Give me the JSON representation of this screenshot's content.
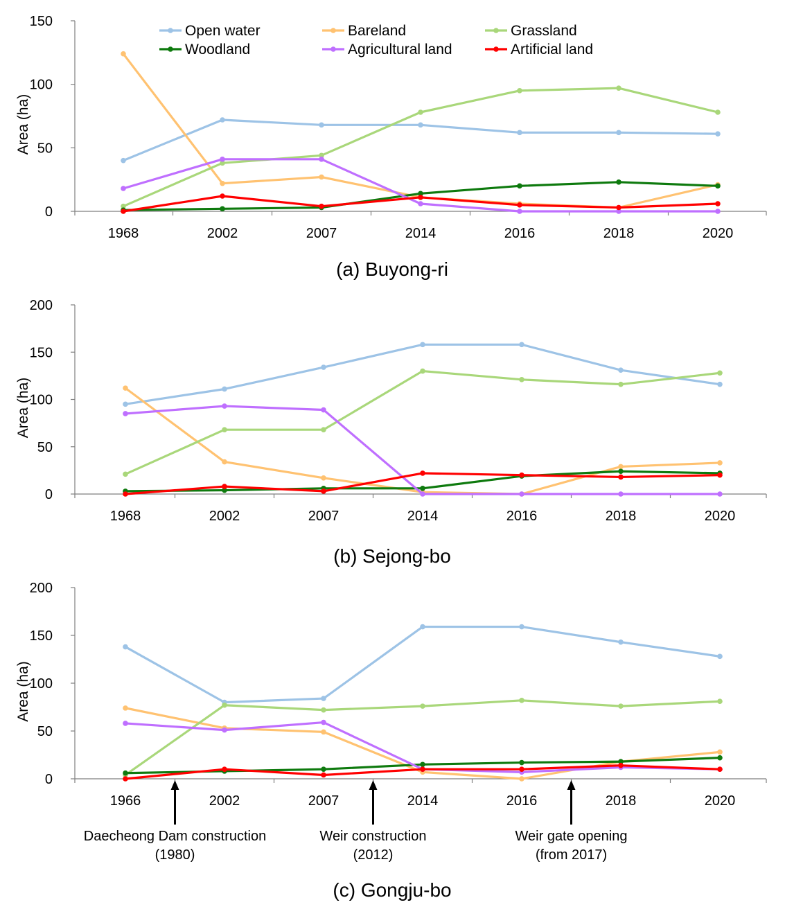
{
  "legend": {
    "items": [
      {
        "name": "Open water",
        "color": "#9dc3e6"
      },
      {
        "name": "Bareland",
        "color": "#ffc271"
      },
      {
        "name": "Grassland",
        "color": "#a9d77a"
      },
      {
        "name": "Woodland",
        "color": "#0e7a0e"
      },
      {
        "name": "Agricultural land",
        "color": "#bf6fff"
      },
      {
        "name": "Artificial land",
        "color": "#ff0000"
      }
    ]
  },
  "chart_data": [
    {
      "type": "line",
      "caption": "(a)  Buyong-ri",
      "categories": [
        "1968",
        "2002",
        "2007",
        "2014",
        "2016",
        "2018",
        "2020"
      ],
      "ylabel": "Area (ha)",
      "ylim": [
        0,
        150
      ],
      "yticks": [
        0,
        50,
        100,
        150
      ],
      "series": [
        {
          "name": "Open water",
          "color": "#9dc3e6",
          "values": [
            40,
            72,
            68,
            68,
            62,
            62,
            61
          ]
        },
        {
          "name": "Bareland",
          "color": "#ffc271",
          "values": [
            124,
            22,
            27,
            11,
            6,
            3,
            21
          ]
        },
        {
          "name": "Grassland",
          "color": "#a9d77a",
          "values": [
            4,
            38,
            44,
            78,
            95,
            97,
            78
          ]
        },
        {
          "name": "Woodland",
          "color": "#0e7a0e",
          "values": [
            1,
            2,
            3,
            14,
            20,
            23,
            20
          ]
        },
        {
          "name": "Agricultural land",
          "color": "#bf6fff",
          "values": [
            18,
            41,
            41,
            6,
            0,
            0,
            0
          ]
        },
        {
          "name": "Artificial land",
          "color": "#ff0000",
          "values": [
            0,
            12,
            4,
            11,
            5,
            3,
            6
          ]
        }
      ]
    },
    {
      "type": "line",
      "caption": "(b)  Sejong-bo",
      "categories": [
        "1968",
        "2002",
        "2007",
        "2014",
        "2016",
        "2018",
        "2020"
      ],
      "ylabel": "Area (ha)",
      "ylim": [
        0,
        200
      ],
      "yticks": [
        0,
        50,
        100,
        150,
        200
      ],
      "series": [
        {
          "name": "Open water",
          "color": "#9dc3e6",
          "values": [
            95,
            111,
            134,
            158,
            158,
            131,
            116
          ]
        },
        {
          "name": "Bareland",
          "color": "#ffc271",
          "values": [
            112,
            34,
            17,
            2,
            0,
            29,
            33
          ]
        },
        {
          "name": "Grassland",
          "color": "#a9d77a",
          "values": [
            21,
            68,
            68,
            130,
            121,
            116,
            128
          ]
        },
        {
          "name": "Woodland",
          "color": "#0e7a0e",
          "values": [
            3,
            4,
            6,
            6,
            19,
            24,
            22
          ]
        },
        {
          "name": "Agricultural land",
          "color": "#bf6fff",
          "values": [
            85,
            93,
            89,
            0,
            0,
            0,
            0
          ]
        },
        {
          "name": "Artificial land",
          "color": "#ff0000",
          "values": [
            0,
            8,
            3,
            22,
            20,
            18,
            20
          ]
        }
      ]
    },
    {
      "type": "line",
      "caption": "(c)  Gongju-bo",
      "categories": [
        "1966",
        "2002",
        "2007",
        "2014",
        "2016",
        "2018",
        "2020"
      ],
      "ylabel": "Area (ha)",
      "ylim": [
        0,
        200
      ],
      "yticks": [
        0,
        50,
        100,
        150,
        200
      ],
      "series": [
        {
          "name": "Open water",
          "color": "#9dc3e6",
          "values": [
            138,
            80,
            84,
            159,
            159,
            143,
            128
          ]
        },
        {
          "name": "Bareland",
          "color": "#ffc271",
          "values": [
            74,
            53,
            49,
            7,
            0,
            18,
            28
          ]
        },
        {
          "name": "Grassland",
          "color": "#a9d77a",
          "values": [
            4,
            77,
            72,
            76,
            82,
            76,
            81
          ]
        },
        {
          "name": "Woodland",
          "color": "#0e7a0e",
          "values": [
            6,
            8,
            10,
            15,
            17,
            18,
            22
          ]
        },
        {
          "name": "Agricultural land",
          "color": "#bf6fff",
          "values": [
            58,
            51,
            59,
            10,
            7,
            12,
            10
          ]
        },
        {
          "name": "Artificial land",
          "color": "#ff0000",
          "values": [
            0,
            10,
            4,
            10,
            10,
            14,
            10
          ]
        }
      ],
      "annotations": [
        {
          "text_lines": [
            "Daecheong Dam construction",
            "(1980)"
          ],
          "between": [
            0,
            1
          ]
        },
        {
          "text_lines": [
            "Weir construction",
            "(2012)"
          ],
          "between": [
            2,
            3
          ]
        },
        {
          "text_lines": [
            "Weir gate opening",
            "(from 2017)"
          ],
          "between": [
            4,
            5
          ]
        }
      ]
    }
  ]
}
